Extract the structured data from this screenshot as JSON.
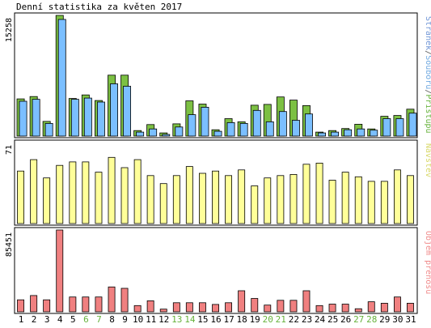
{
  "chart_data": {
    "type": "bar",
    "title": "Denní statistika za květen 2017",
    "categories": [
      "1",
      "2",
      "3",
      "4",
      "5",
      "6",
      "7",
      "8",
      "9",
      "10",
      "11",
      "12",
      "13",
      "14",
      "15",
      "16",
      "17",
      "18",
      "19",
      "20",
      "21",
      "22",
      "23",
      "24",
      "25",
      "26",
      "27",
      "28",
      "29",
      "30",
      "31"
    ],
    "weekend_days": [
      "6",
      "7",
      "13",
      "14",
      "20",
      "21",
      "27",
      "28"
    ],
    "panels": [
      {
        "id": "top",
        "ylabel_max": "15258",
        "ylim": [
          0,
          15258
        ],
        "legend_vertical": [
          {
            "text": "Stránek",
            "color": "#6f95d6"
          },
          {
            "text": "/",
            "color": "#555555"
          },
          {
            "text": "Souborů",
            "color": "#6fa8e0"
          },
          {
            "text": "/",
            "color": "#555555"
          },
          {
            "text": "Přístupů",
            "color": "#66b23b"
          }
        ],
        "series": [
          {
            "name": "Přístupů",
            "color": "#7cc043",
            "values": [
              4700,
              5000,
              1850,
              15258,
              4750,
              5200,
              4500,
              7700,
              7700,
              700,
              1450,
              400,
              1550,
              4450,
              4050,
              800,
              2200,
              1800,
              3900,
              4000,
              4950,
              4550,
              3850,
              500,
              700,
              950,
              1500,
              900,
              2500,
              2600,
              3400
            ]
          },
          {
            "name": "Souborů",
            "color": "#7bbfff",
            "values": [
              4400,
              4650,
              1600,
              14750,
              4650,
              4800,
              4300,
              6600,
              6300,
              500,
              900,
              200,
              1150,
              2700,
              3650,
              600,
              1700,
              1600,
              3250,
              1800,
              3100,
              2000,
              2800,
              400,
              500,
              800,
              900,
              750,
              2200,
              2200,
              2900
            ]
          },
          {
            "name": "Stránek",
            "color": "#6f95d6",
            "values": [
              0,
              0,
              0,
              0,
              0,
              0,
              0,
              0,
              0,
              0,
              0,
              0,
              0,
              0,
              0,
              0,
              0,
              0,
              0,
              0,
              0,
              0,
              0,
              0,
              0,
              0,
              0,
              0,
              0,
              0,
              0
            ]
          }
        ]
      },
      {
        "id": "mid",
        "ylabel_max": "71",
        "ylim": [
          0,
          71
        ],
        "legend_vertical": [
          {
            "text": "Návštěv",
            "color": "#d8d868"
          }
        ],
        "series": [
          {
            "name": "Návštěv",
            "color": "#ffff99",
            "values": [
              46,
              56,
              40,
              51,
              54,
              54,
              45,
              58,
              49,
              56,
              42,
              35,
              42,
              50,
              44,
              46,
              42,
              47,
              33,
              40,
              42,
              43,
              52,
              53,
              38,
              45,
              41,
              37,
              37,
              47,
              42
            ]
          }
        ]
      },
      {
        "id": "bot",
        "ylabel_max": "85451",
        "ylim": [
          0,
          85451
        ],
        "legend_vertical": [
          {
            "text": "Objem přenosu",
            "color": "#f08b8b"
          }
        ],
        "series": [
          {
            "name": "Objem přenosu",
            "color": "#f08080",
            "values": [
              12500,
              17000,
              12500,
              85451,
              15500,
              15500,
              15500,
              26000,
              24500,
              6500,
              11500,
              2800,
              9500,
              9500,
              9500,
              7700,
              9500,
              22000,
              14000,
              7000,
              12000,
              12000,
              22000,
              6500,
              8000,
              8000,
              3200,
              10500,
              9000,
              15500,
              9000
            ]
          }
        ]
      }
    ]
  }
}
